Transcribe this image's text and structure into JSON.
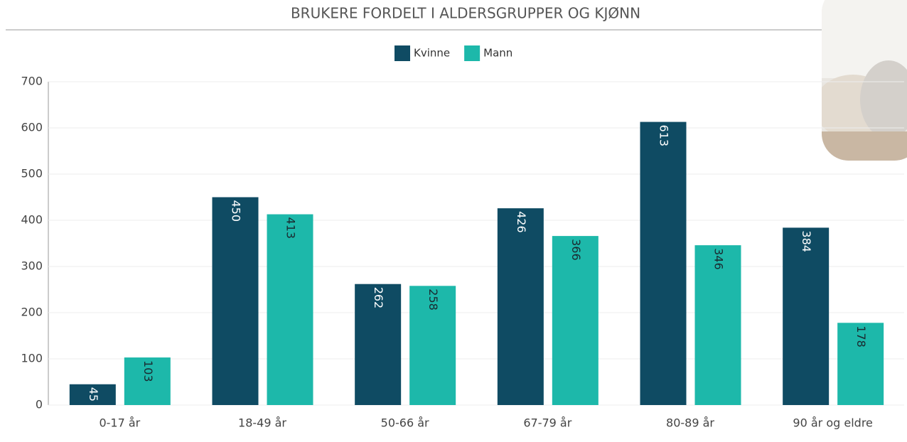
{
  "chart_data": {
    "type": "bar",
    "title": "BRUKERE FORDELT I ALDERSGRUPPER OG KJØNN",
    "categories": [
      "0-17 år",
      "18-49 år",
      "50-66 år",
      "67-79 år",
      "80-89 år",
      "90 år og eldre"
    ],
    "series": [
      {
        "name": "Kvinne",
        "color": "#0f4b63",
        "values": [
          45,
          450,
          262,
          426,
          613,
          384
        ]
      },
      {
        "name": "Mann",
        "color": "#1db8aa",
        "values": [
          103,
          413,
          258,
          366,
          346,
          178
        ]
      }
    ],
    "ylim": [
      0,
      700
    ],
    "yticks": [
      0,
      100,
      200,
      300,
      400,
      500,
      600,
      700
    ],
    "grid": true,
    "legend": "top"
  }
}
